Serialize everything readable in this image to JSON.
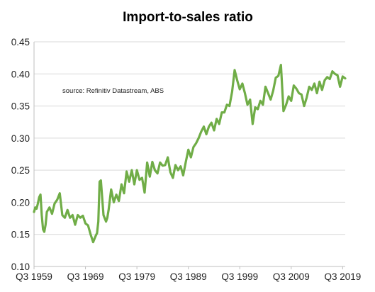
{
  "chart_data": {
    "type": "line",
    "title": "Import-to-sales ratio",
    "annotation": "source:  Refinitiv Datastream, ABS",
    "xlabel": "",
    "ylabel": "",
    "x_tick_labels": [
      "Q3 1959",
      "Q3 1969",
      "Q3 1979",
      "Q3 1989",
      "Q3 1999",
      "Q3 2009",
      "Q3 2019"
    ],
    "y_tick_labels": [
      "0.10",
      "0.15",
      "0.20",
      "0.25",
      "0.30",
      "0.35",
      "0.40",
      "0.45"
    ],
    "ylim": [
      0.1,
      0.45
    ],
    "xlim": [
      1959.5,
      2020.0
    ],
    "grid": "horizontal",
    "legend": "none",
    "colors": {
      "line": "#70ad47",
      "grid": "#d9d9d9",
      "axis": "#bfbfbf"
    },
    "series": [
      {
        "x": [
          1959.5,
          1959.75,
          1960.0,
          1960.25,
          1960.5,
          1960.75,
          1961.0,
          1961.25,
          1961.5,
          1961.75,
          1962.0,
          1962.5,
          1963.0,
          1963.5,
          1964.0,
          1964.5,
          1965.0,
          1965.5,
          1966.0,
          1966.5,
          1967.0,
          1967.5,
          1968.0,
          1968.5,
          1969.0,
          1969.5,
          1970.0,
          1970.5,
          1971.0,
          1971.5,
          1971.75,
          1972.0,
          1972.25,
          1972.5,
          1973.0,
          1973.5,
          1973.75,
          1974.0,
          1974.5,
          1975.0,
          1975.5,
          1976.0,
          1976.5,
          1977.0,
          1977.5,
          1978.0,
          1978.5,
          1979.0,
          1979.5,
          1980.0,
          1980.5,
          1981.0,
          1981.5,
          1982.0,
          1982.5,
          1983.0,
          1983.5,
          1984.0,
          1984.5,
          1985.0,
          1985.5,
          1986.0,
          1986.5,
          1987.0,
          1987.5,
          1988.0,
          1988.5,
          1989.0,
          1989.5,
          1990.0,
          1990.5,
          1991.0,
          1991.5,
          1992.0,
          1992.5,
          1993.0,
          1993.5,
          1994.0,
          1994.5,
          1995.0,
          1995.5,
          1996.0,
          1996.5,
          1997.0,
          1997.5,
          1998.0,
          1998.5,
          1999.0,
          1999.5,
          2000.0,
          2000.5,
          2001.0,
          2001.5,
          2002.0,
          2002.5,
          2003.0,
          2003.5,
          2004.0,
          2004.5,
          2005.0,
          2005.5,
          2006.0,
          2006.5,
          2007.0,
          2007.5,
          2008.0,
          2008.5,
          2009.0,
          2009.5,
          2010.0,
          2010.5,
          2011.0,
          2011.5,
          2012.0,
          2012.5,
          2013.0,
          2013.5,
          2014.0,
          2014.5,
          2015.0,
          2015.5,
          2016.0,
          2016.5,
          2017.0,
          2017.5,
          2018.0,
          2018.5,
          2019.0,
          2019.5,
          2020.0
        ],
        "values": [
          0.185,
          0.192,
          0.19,
          0.198,
          0.208,
          0.212,
          0.18,
          0.158,
          0.154,
          0.165,
          0.185,
          0.192,
          0.182,
          0.198,
          0.204,
          0.214,
          0.18,
          0.176,
          0.188,
          0.176,
          0.18,
          0.165,
          0.18,
          0.176,
          0.179,
          0.167,
          0.164,
          0.15,
          0.138,
          0.148,
          0.152,
          0.17,
          0.232,
          0.234,
          0.18,
          0.17,
          0.176,
          0.188,
          0.22,
          0.2,
          0.212,
          0.202,
          0.228,
          0.214,
          0.248,
          0.232,
          0.25,
          0.228,
          0.25,
          0.235,
          0.238,
          0.215,
          0.262,
          0.24,
          0.263,
          0.25,
          0.245,
          0.262,
          0.257,
          0.258,
          0.27,
          0.247,
          0.238,
          0.258,
          0.25,
          0.256,
          0.242,
          0.263,
          0.282,
          0.27,
          0.286,
          0.292,
          0.3,
          0.31,
          0.318,
          0.306,
          0.318,
          0.324,
          0.312,
          0.33,
          0.322,
          0.34,
          0.34,
          0.352,
          0.35,
          0.372,
          0.406,
          0.39,
          0.376,
          0.385,
          0.37,
          0.352,
          0.36,
          0.322,
          0.348,
          0.345,
          0.358,
          0.352,
          0.38,
          0.37,
          0.36,
          0.374,
          0.394,
          0.397,
          0.414,
          0.342,
          0.352,
          0.365,
          0.358,
          0.382,
          0.377,
          0.37,
          0.368,
          0.35,
          0.363,
          0.38,
          0.375,
          0.385,
          0.37,
          0.388,
          0.375,
          0.39,
          0.395,
          0.392,
          0.404,
          0.4,
          0.398,
          0.38,
          0.396,
          0.393
        ]
      }
    ]
  }
}
